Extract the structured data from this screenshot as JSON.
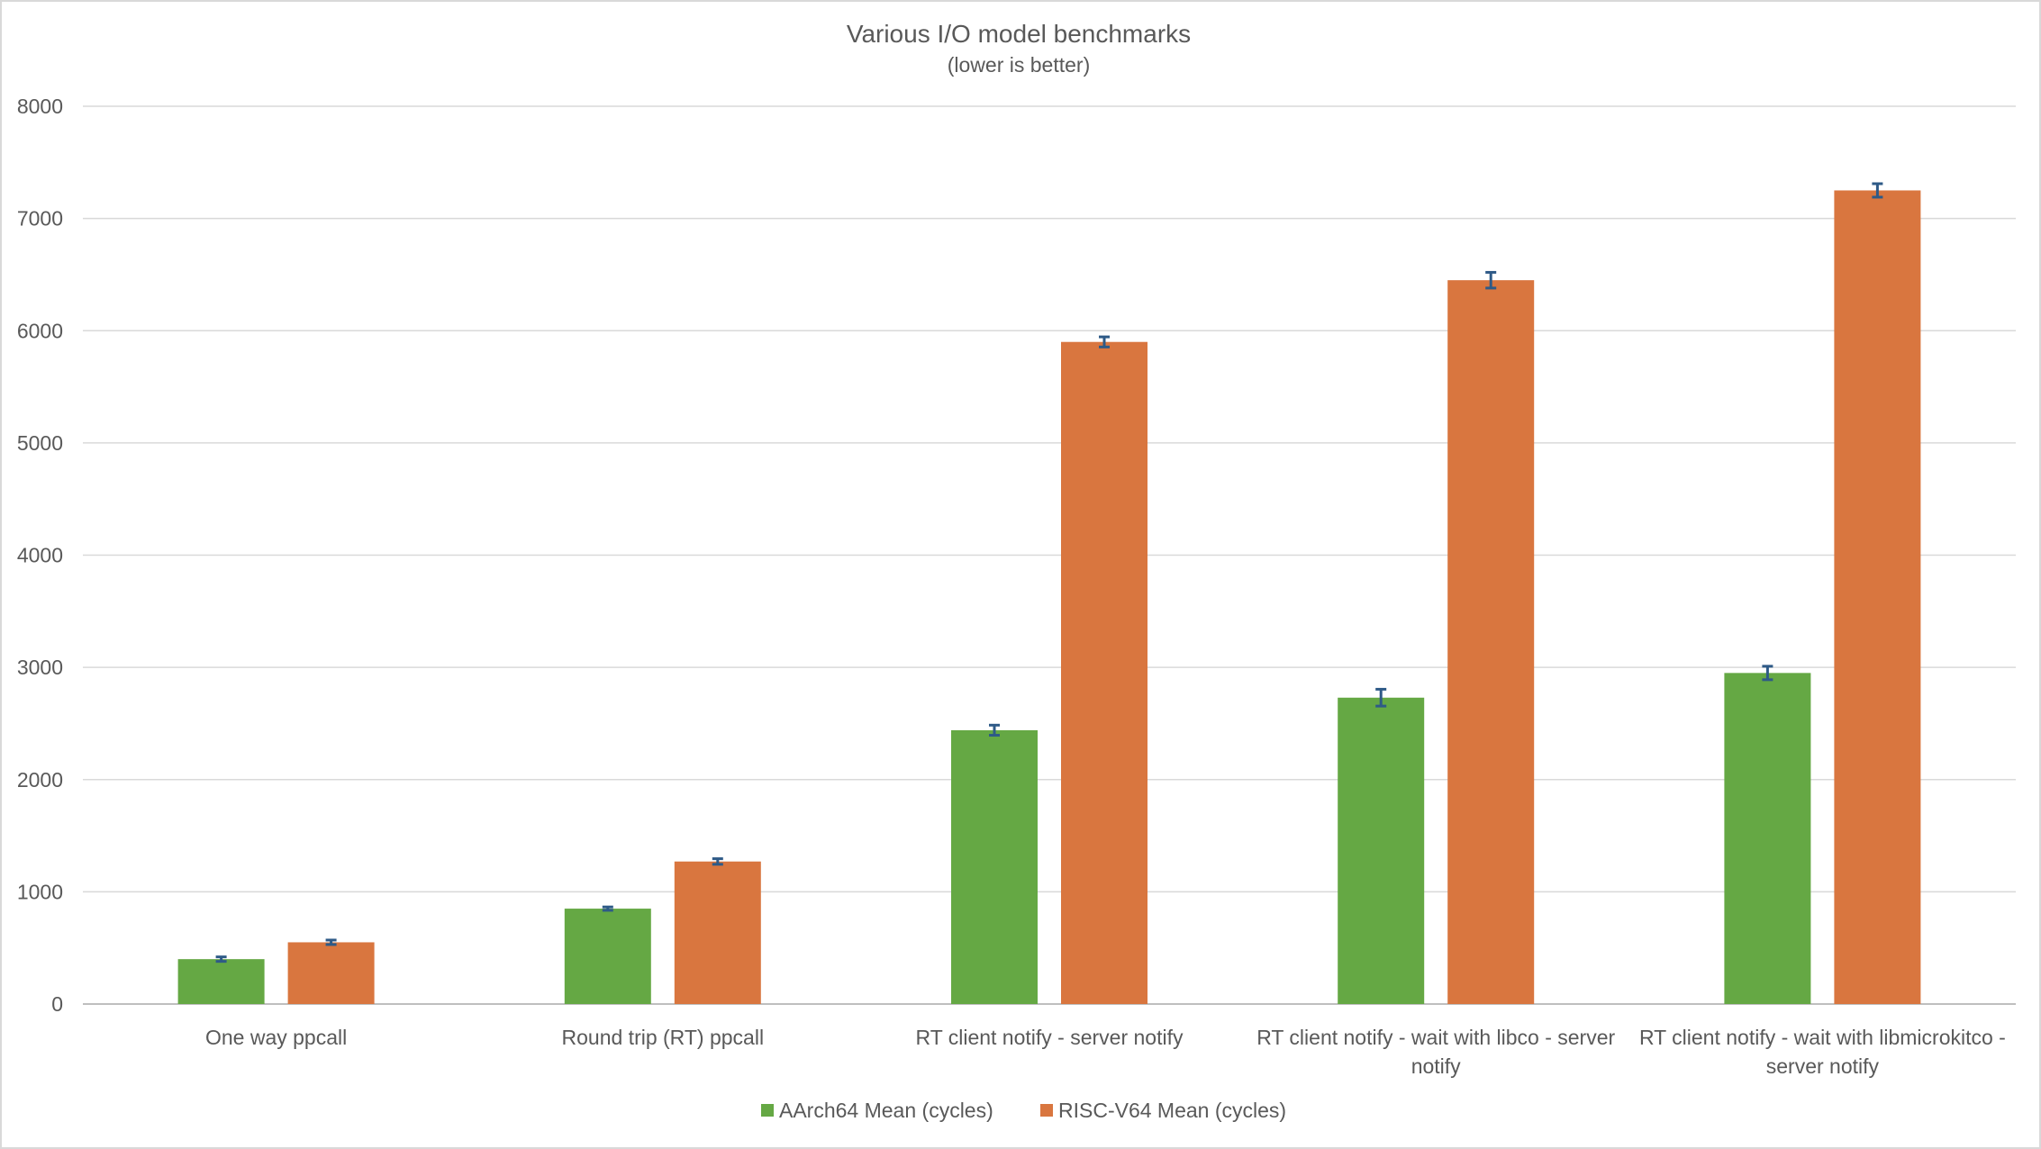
{
  "chart_data": {
    "type": "bar",
    "title": "Various I/O model benchmarks",
    "subtitle": "(lower is better)",
    "xlabel": "",
    "ylabel": "",
    "ylim": [
      0,
      8000
    ],
    "yticks": [
      0,
      1000,
      2000,
      3000,
      4000,
      5000,
      6000,
      7000,
      8000
    ],
    "grid": true,
    "legend_position": "bottom",
    "categories": [
      [
        "One way ppcall"
      ],
      [
        "Round trip (RT) ppcall"
      ],
      [
        "RT client notify - server notify"
      ],
      [
        "RT client notify - wait with libco - server",
        "notify"
      ],
      [
        "RT client notify - wait with libmicrokitco -",
        "server notify"
      ]
    ],
    "series": [
      {
        "name": "AArch64 Mean (cycles)",
        "color": "#65a844",
        "values": [
          400,
          850,
          2440,
          2730,
          2950
        ],
        "errors": [
          20,
          15,
          45,
          75,
          60
        ]
      },
      {
        "name": "RISC-V64 Mean (cycles)",
        "color": "#d9763f",
        "values": [
          550,
          1270,
          5900,
          6450,
          7250
        ],
        "errors": [
          20,
          25,
          45,
          70,
          60
        ]
      }
    ],
    "colors": {
      "error_bar": "#2e5a87",
      "grid": "#d9d9d9",
      "axis": "#bfbfbf",
      "text": "#595959"
    }
  }
}
